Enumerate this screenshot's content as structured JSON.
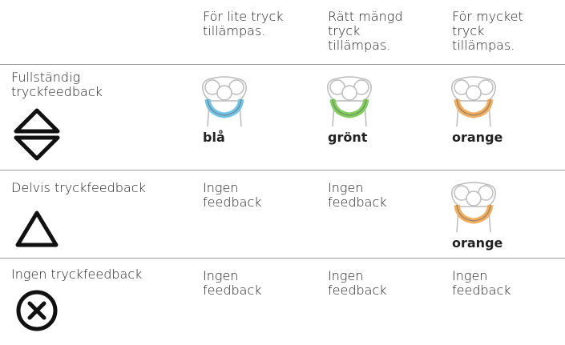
{
  "table": {
    "header": [
      "För lite tryck tillämpas.",
      "Rätt mängd tryck tillämpas.",
      "För mycket tryck tillämpas."
    ],
    "rows": [
      {
        "label": "Fullständig tryckfeedback",
        "cells": [
          {
            "color_label": "blå"
          },
          {
            "color_label": "grönt"
          },
          {
            "color_label": "orange"
          }
        ]
      },
      {
        "label": "Delvis tryckfeedback",
        "cells": [
          {
            "text": "Ingen feedback"
          },
          {
            "text": "Ingen feedback"
          },
          {
            "color_label": "orange"
          }
        ]
      },
      {
        "label": "Ingen tryckfeedback",
        "cells": [
          {
            "text": "Ingen feedback"
          },
          {
            "text": "Ingen feedback"
          },
          {
            "text": "Ingen feedback"
          }
        ]
      }
    ]
  }
}
